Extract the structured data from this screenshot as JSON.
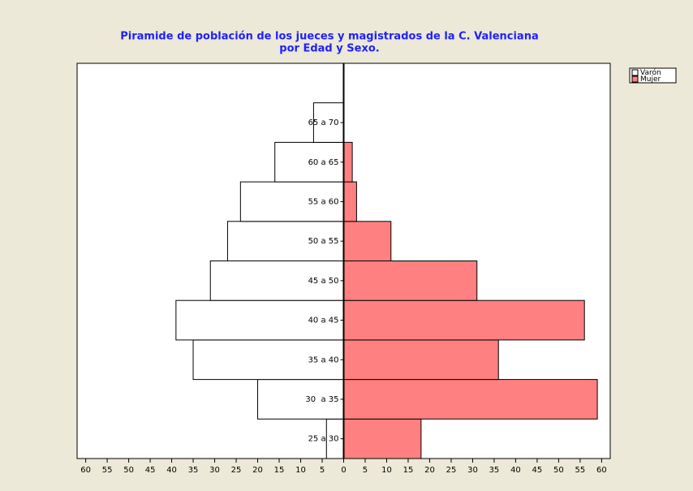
{
  "chart_data": {
    "type": "pyramid",
    "title": "Piramide de población de los jueces y magistrados de la C. Valenciana",
    "subtitle": "por Edad y Sexo.",
    "categories": [
      "25 a 30",
      "30  a 35",
      "35 a 40",
      "40 a 45",
      "45 a 50",
      "50 a 55",
      "55 a 60",
      "60 a 65",
      "65 a 70"
    ],
    "series": [
      {
        "name": "Varón",
        "color": "#ffffff",
        "values": [
          -4,
          -20,
          -35,
          -39,
          -31,
          -27,
          -24,
          -16,
          -7
        ]
      },
      {
        "name": "Mujer",
        "color": "#ff8080",
        "values": [
          18,
          59,
          36,
          56,
          31,
          11,
          3,
          2,
          0
        ]
      }
    ],
    "xlim": [
      -62,
      62
    ],
    "xticks": [
      {
        "value": -60,
        "label": "60"
      },
      {
        "value": -55,
        "label": "55"
      },
      {
        "value": -50,
        "label": "50"
      },
      {
        "value": -45,
        "label": "45"
      },
      {
        "value": -40,
        "label": "40"
      },
      {
        "value": -35,
        "label": "35"
      },
      {
        "value": -30,
        "label": "30"
      },
      {
        "value": -25,
        "label": "25"
      },
      {
        "value": -20,
        "label": "20"
      },
      {
        "value": -15,
        "label": "15"
      },
      {
        "value": -10,
        "label": "10"
      },
      {
        "value": -5,
        "label": "5"
      },
      0,
      5,
      10,
      15,
      20,
      25,
      30,
      35,
      40,
      45,
      50,
      55,
      60
    ],
    "legend": "top-right"
  }
}
